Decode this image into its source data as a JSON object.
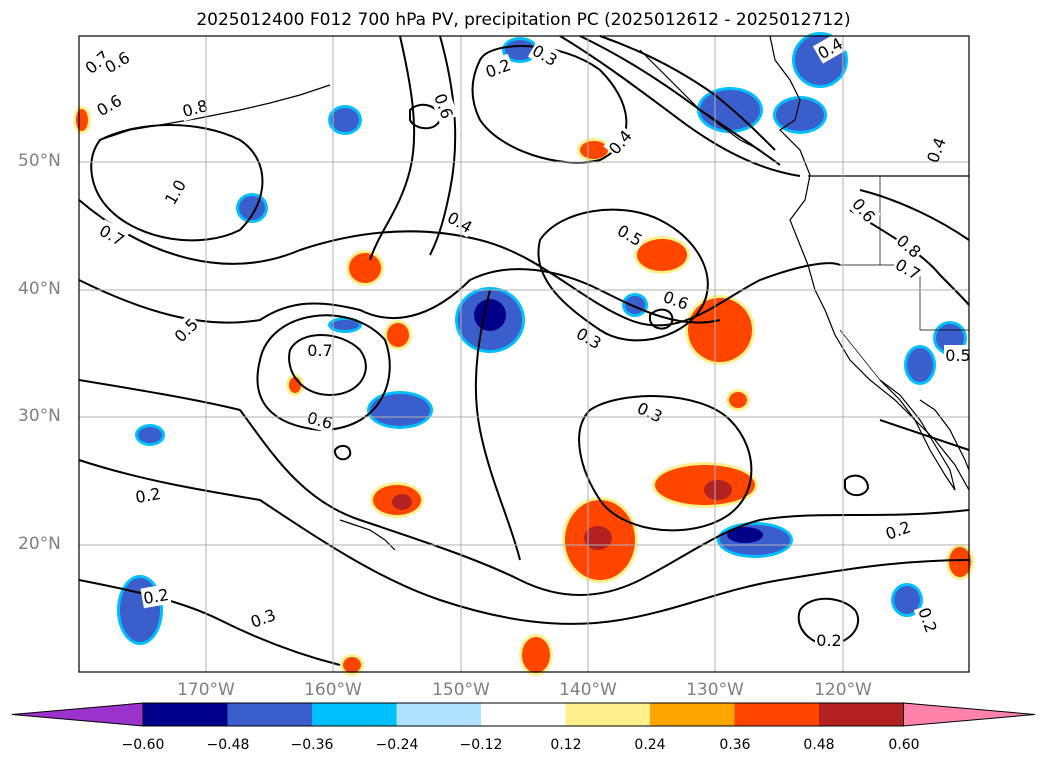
{
  "title": "2025012400 F012 700 hPa PV, precipitation PC (2025012612 - 2025012712)",
  "map": {
    "lat_labels": [
      "50°N",
      "40°N",
      "30°N",
      "20°N"
    ],
    "lon_labels": [
      "170°W",
      "160°W",
      "150°W",
      "140°W",
      "130°W",
      "120°W"
    ],
    "grid": true,
    "background": "#ffffff"
  },
  "contour_labels": [
    "0.7",
    "0.6",
    "0.6",
    "0.8",
    "1.0",
    "0.7",
    "0.5",
    "0.7",
    "0.6",
    "0.2",
    "0.2",
    "0.3",
    "0.4",
    "0.6",
    "0.2",
    "0.3",
    "0.5",
    "0.6",
    "0.3",
    "0.3",
    "0.2",
    "0.2",
    "0.2",
    "0.4",
    "0.4",
    "0.6",
    "0.8",
    "0.7",
    "0.5",
    "0.4"
  ],
  "colorbar": {
    "ticks": [
      "−0.60",
      "−0.48",
      "−0.36",
      "−0.24",
      "−0.12",
      "0.12",
      "0.24",
      "0.36",
      "0.48",
      "0.60"
    ],
    "colors": [
      "#9a32cd",
      "#00008b",
      "#3a5fcd",
      "#00bfff",
      "#b0e2ff",
      "#ffffff",
      "#fff08c",
      "#ffa500",
      "#ff4500",
      "#b22222",
      "#ff82ab"
    ]
  },
  "precip_colors": {
    "neg_dark": "#00008b",
    "neg_mid": "#3a5fcd",
    "neg_light": "#00bfff",
    "pos_light": "#fff08c",
    "pos_mid": "#ffa500",
    "pos_strong": "#ff4500",
    "pos_dark": "#b22222"
  }
}
